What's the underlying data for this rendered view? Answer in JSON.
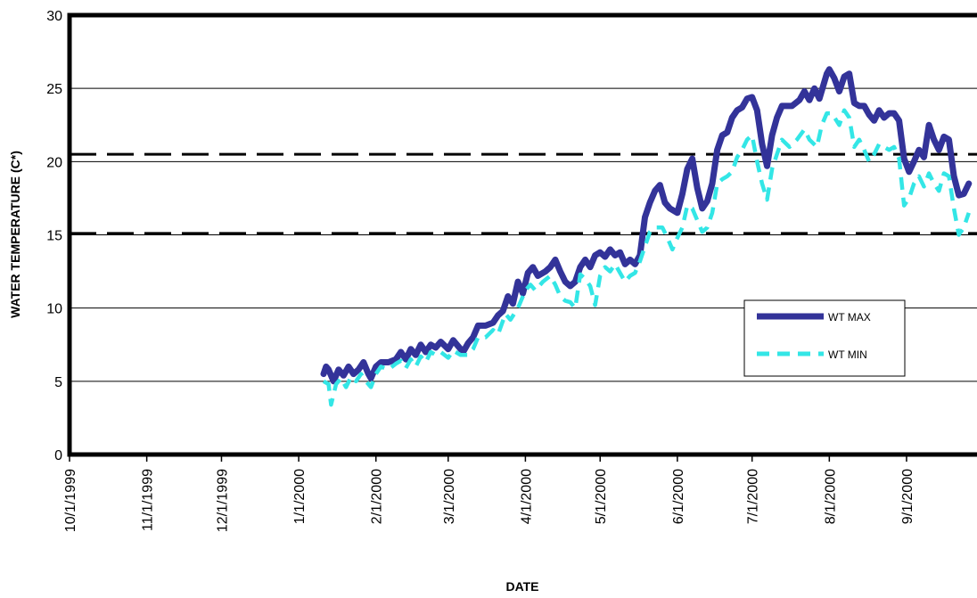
{
  "chart_data": {
    "type": "line",
    "title": "",
    "xlabel": "DATE",
    "ylabel": "WATER TEMPERATURE (C*)",
    "ylim": [
      0,
      30
    ],
    "yticks": [
      "0",
      "5",
      "10",
      "15",
      "20",
      "25",
      "30"
    ],
    "xlim": [
      "1999-10-01",
      "2000-09-30"
    ],
    "xticks": [
      {
        "date": "1999-10-01",
        "label": "10/1/1999"
      },
      {
        "date": "1999-11-01",
        "label": "11/1/1999"
      },
      {
        "date": "1999-12-01",
        "label": "12/1/1999"
      },
      {
        "date": "2000-01-01",
        "label": "1/1/2000"
      },
      {
        "date": "2000-02-01",
        "label": "2/1/2000"
      },
      {
        "date": "2000-03-01",
        "label": "3/1/2000"
      },
      {
        "date": "2000-04-01",
        "label": "4/1/2000"
      },
      {
        "date": "2000-05-01",
        "label": "5/1/2000"
      },
      {
        "date": "2000-06-01",
        "label": "6/1/2000"
      },
      {
        "date": "2000-07-01",
        "label": "7/1/2000"
      },
      {
        "date": "2000-08-01",
        "label": "8/1/2000"
      },
      {
        "date": "2000-09-01",
        "label": "9/1/2000"
      }
    ],
    "grid": "horizontal",
    "legend_position": "right",
    "reference_lines": [
      {
        "y": 20.5,
        "style": "dashed"
      },
      {
        "y": 15.1,
        "style": "dashed"
      }
    ],
    "series": [
      {
        "name": "WT MAX",
        "color": "#333399",
        "style": "solid",
        "points": [
          [
            "2000-01-11",
            5.5
          ],
          [
            "2000-01-12",
            6.0
          ],
          [
            "2000-01-13",
            5.8
          ],
          [
            "2000-01-15",
            5.0
          ],
          [
            "2000-01-17",
            5.8
          ],
          [
            "2000-01-19",
            5.4
          ],
          [
            "2000-01-21",
            6.0
          ],
          [
            "2000-01-23",
            5.5
          ],
          [
            "2000-01-25",
            5.8
          ],
          [
            "2000-01-27",
            6.3
          ],
          [
            "2000-01-29",
            5.5
          ],
          [
            "2000-01-30",
            5.2
          ],
          [
            "2000-02-01",
            6.0
          ],
          [
            "2000-02-03",
            6.3
          ],
          [
            "2000-02-06",
            6.3
          ],
          [
            "2000-02-09",
            6.5
          ],
          [
            "2000-02-11",
            7.0
          ],
          [
            "2000-02-13",
            6.5
          ],
          [
            "2000-02-15",
            7.2
          ],
          [
            "2000-02-17",
            6.8
          ],
          [
            "2000-02-19",
            7.5
          ],
          [
            "2000-02-21",
            7.0
          ],
          [
            "2000-02-23",
            7.5
          ],
          [
            "2000-02-25",
            7.3
          ],
          [
            "2000-02-27",
            7.7
          ],
          [
            "2000-03-01",
            7.2
          ],
          [
            "2000-03-03",
            7.8
          ],
          [
            "2000-03-05",
            7.4
          ],
          [
            "2000-03-07",
            7.0
          ],
          [
            "2000-03-09",
            7.6
          ],
          [
            "2000-03-11",
            8.0
          ],
          [
            "2000-03-13",
            8.8
          ],
          [
            "2000-03-16",
            8.8
          ],
          [
            "2000-03-19",
            9.0
          ],
          [
            "2000-03-21",
            9.5
          ],
          [
            "2000-03-23",
            9.8
          ],
          [
            "2000-03-25",
            10.8
          ],
          [
            "2000-03-27",
            10.3
          ],
          [
            "2000-03-29",
            11.8
          ],
          [
            "2000-03-31",
            11.0
          ],
          [
            "2000-04-02",
            12.4
          ],
          [
            "2000-04-04",
            12.8
          ],
          [
            "2000-04-06",
            12.2
          ],
          [
            "2000-04-09",
            12.5
          ],
          [
            "2000-04-11",
            12.8
          ],
          [
            "2000-04-13",
            13.3
          ],
          [
            "2000-04-15",
            12.5
          ],
          [
            "2000-04-17",
            11.8
          ],
          [
            "2000-04-19",
            11.5
          ],
          [
            "2000-04-21",
            11.8
          ],
          [
            "2000-04-23",
            12.8
          ],
          [
            "2000-04-25",
            13.3
          ],
          [
            "2000-04-27",
            12.8
          ],
          [
            "2000-04-29",
            13.6
          ],
          [
            "2000-05-01",
            13.8
          ],
          [
            "2000-05-03",
            13.5
          ],
          [
            "2000-05-05",
            14.0
          ],
          [
            "2000-05-07",
            13.6
          ],
          [
            "2000-05-09",
            13.8
          ],
          [
            "2000-05-11",
            13.0
          ],
          [
            "2000-05-13",
            13.3
          ],
          [
            "2000-05-15",
            13.0
          ],
          [
            "2000-05-17",
            13.6
          ],
          [
            "2000-05-19",
            16.2
          ],
          [
            "2000-05-21",
            17.2
          ],
          [
            "2000-05-23",
            18.0
          ],
          [
            "2000-05-25",
            18.4
          ],
          [
            "2000-05-27",
            17.2
          ],
          [
            "2000-05-29",
            16.8
          ],
          [
            "2000-06-01",
            16.5
          ],
          [
            "2000-06-03",
            17.8
          ],
          [
            "2000-06-05",
            19.5
          ],
          [
            "2000-06-07",
            20.2
          ],
          [
            "2000-06-09",
            18.2
          ],
          [
            "2000-06-11",
            16.8
          ],
          [
            "2000-06-13",
            17.3
          ],
          [
            "2000-06-15",
            18.5
          ],
          [
            "2000-06-17",
            20.8
          ],
          [
            "2000-06-19",
            21.8
          ],
          [
            "2000-06-21",
            22.0
          ],
          [
            "2000-06-23",
            23.0
          ],
          [
            "2000-06-25",
            23.5
          ],
          [
            "2000-06-27",
            23.7
          ],
          [
            "2000-06-29",
            24.3
          ],
          [
            "2000-07-01",
            24.4
          ],
          [
            "2000-07-03",
            23.5
          ],
          [
            "2000-07-05",
            21.2
          ],
          [
            "2000-07-07",
            19.7
          ],
          [
            "2000-07-09",
            21.8
          ],
          [
            "2000-07-11",
            23.0
          ],
          [
            "2000-07-13",
            23.8
          ],
          [
            "2000-07-17",
            23.8
          ],
          [
            "2000-07-20",
            24.2
          ],
          [
            "2000-07-22",
            24.8
          ],
          [
            "2000-07-24",
            24.2
          ],
          [
            "2000-07-26",
            25.0
          ],
          [
            "2000-07-28",
            24.3
          ],
          [
            "2000-07-31",
            26.0
          ],
          [
            "2000-08-01",
            26.3
          ],
          [
            "2000-08-03",
            25.7
          ],
          [
            "2000-08-05",
            24.8
          ],
          [
            "2000-08-07",
            25.8
          ],
          [
            "2000-08-09",
            26.0
          ],
          [
            "2000-08-11",
            24.0
          ],
          [
            "2000-08-13",
            23.8
          ],
          [
            "2000-08-15",
            23.8
          ],
          [
            "2000-08-17",
            23.2
          ],
          [
            "2000-08-19",
            22.8
          ],
          [
            "2000-08-21",
            23.5
          ],
          [
            "2000-08-23",
            23.0
          ],
          [
            "2000-08-25",
            23.3
          ],
          [
            "2000-08-27",
            23.3
          ],
          [
            "2000-08-29",
            22.8
          ],
          [
            "2000-08-31",
            20.2
          ],
          [
            "2000-09-02",
            19.3
          ],
          [
            "2000-09-04",
            20.0
          ],
          [
            "2000-09-06",
            20.8
          ],
          [
            "2000-09-08",
            20.3
          ],
          [
            "2000-09-10",
            22.5
          ],
          [
            "2000-09-12",
            21.5
          ],
          [
            "2000-09-14",
            20.8
          ],
          [
            "2000-09-16",
            21.7
          ],
          [
            "2000-09-18",
            21.5
          ],
          [
            "2000-09-20",
            19.0
          ],
          [
            "2000-09-22",
            17.7
          ],
          [
            "2000-09-24",
            17.8
          ],
          [
            "2000-09-26",
            18.5
          ]
        ]
      },
      {
        "name": "WT MIN",
        "color": "#33e6e6",
        "style": "dashed",
        "points": [
          [
            "2000-01-11",
            5.0
          ],
          [
            "2000-01-13",
            4.8
          ],
          [
            "2000-01-14",
            3.4
          ],
          [
            "2000-01-16",
            4.8
          ],
          [
            "2000-01-18",
            5.2
          ],
          [
            "2000-01-20",
            4.6
          ],
          [
            "2000-01-22",
            5.3
          ],
          [
            "2000-01-24",
            5.0
          ],
          [
            "2000-01-26",
            5.5
          ],
          [
            "2000-01-28",
            5.0
          ],
          [
            "2000-01-30",
            4.6
          ],
          [
            "2000-02-01",
            5.5
          ],
          [
            "2000-02-03",
            6.0
          ],
          [
            "2000-02-06",
            5.8
          ],
          [
            "2000-02-09",
            6.2
          ],
          [
            "2000-02-11",
            6.4
          ],
          [
            "2000-02-13",
            5.9
          ],
          [
            "2000-02-15",
            6.5
          ],
          [
            "2000-02-17",
            6.0
          ],
          [
            "2000-02-19",
            6.7
          ],
          [
            "2000-02-21",
            6.3
          ],
          [
            "2000-02-23",
            7.0
          ],
          [
            "2000-02-25",
            6.8
          ],
          [
            "2000-02-27",
            7.0
          ],
          [
            "2000-03-01",
            6.6
          ],
          [
            "2000-03-03",
            7.1
          ],
          [
            "2000-03-06",
            6.8
          ],
          [
            "2000-03-09",
            6.8
          ],
          [
            "2000-03-11",
            7.2
          ],
          [
            "2000-03-13",
            8.0
          ],
          [
            "2000-03-16",
            8.0
          ],
          [
            "2000-03-19",
            8.5
          ],
          [
            "2000-03-21",
            8.2
          ],
          [
            "2000-03-24",
            9.6
          ],
          [
            "2000-03-26",
            9.2
          ],
          [
            "2000-03-29",
            10.0
          ],
          [
            "2000-04-01",
            11.2
          ],
          [
            "2000-04-03",
            11.6
          ],
          [
            "2000-04-05",
            11.2
          ],
          [
            "2000-04-08",
            11.8
          ],
          [
            "2000-04-11",
            12.2
          ],
          [
            "2000-04-13",
            11.6
          ],
          [
            "2000-04-15",
            10.8
          ],
          [
            "2000-04-17",
            10.5
          ],
          [
            "2000-04-19",
            10.4
          ],
          [
            "2000-04-21",
            10.0
          ],
          [
            "2000-04-23",
            12.3
          ],
          [
            "2000-04-25",
            12.0
          ],
          [
            "2000-04-27",
            11.5
          ],
          [
            "2000-04-29",
            10.2
          ],
          [
            "2000-05-01",
            12.2
          ],
          [
            "2000-05-03",
            12.8
          ],
          [
            "2000-05-05",
            12.5
          ],
          [
            "2000-05-07",
            13.0
          ],
          [
            "2000-05-09",
            12.4
          ],
          [
            "2000-05-11",
            11.8
          ],
          [
            "2000-05-13",
            12.2
          ],
          [
            "2000-05-15",
            12.4
          ],
          [
            "2000-05-17",
            13.2
          ],
          [
            "2000-05-19",
            14.2
          ],
          [
            "2000-05-21",
            15.2
          ],
          [
            "2000-05-23",
            15.5
          ],
          [
            "2000-05-26",
            15.5
          ],
          [
            "2000-05-28",
            14.8
          ],
          [
            "2000-05-30",
            14.0
          ],
          [
            "2000-06-01",
            14.8
          ],
          [
            "2000-06-03",
            15.5
          ],
          [
            "2000-06-05",
            17.0
          ],
          [
            "2000-06-07",
            16.8
          ],
          [
            "2000-06-09",
            16.0
          ],
          [
            "2000-06-11",
            15.2
          ],
          [
            "2000-06-13",
            15.5
          ],
          [
            "2000-06-15",
            16.5
          ],
          [
            "2000-06-17",
            18.5
          ],
          [
            "2000-06-19",
            18.8
          ],
          [
            "2000-06-21",
            19.0
          ],
          [
            "2000-06-23",
            19.3
          ],
          [
            "2000-06-25",
            20.3
          ],
          [
            "2000-06-27",
            20.8
          ],
          [
            "2000-06-29",
            21.5
          ],
          [
            "2000-07-01",
            21.8
          ],
          [
            "2000-07-03",
            20.0
          ],
          [
            "2000-07-05",
            18.5
          ],
          [
            "2000-07-07",
            17.4
          ],
          [
            "2000-07-09",
            19.5
          ],
          [
            "2000-07-11",
            20.5
          ],
          [
            "2000-07-13",
            21.5
          ],
          [
            "2000-07-16",
            21.0
          ],
          [
            "2000-07-19",
            21.5
          ],
          [
            "2000-07-22",
            22.2
          ],
          [
            "2000-07-24",
            21.5
          ],
          [
            "2000-07-27",
            21.0
          ],
          [
            "2000-07-29",
            22.5
          ],
          [
            "2000-07-31",
            23.3
          ],
          [
            "2000-08-02",
            23.3
          ],
          [
            "2000-08-05",
            22.5
          ],
          [
            "2000-08-07",
            23.5
          ],
          [
            "2000-08-09",
            23.0
          ],
          [
            "2000-08-11",
            21.0
          ],
          [
            "2000-08-13",
            21.5
          ],
          [
            "2000-08-15",
            20.8
          ],
          [
            "2000-08-17",
            20.0
          ],
          [
            "2000-08-19",
            20.5
          ],
          [
            "2000-08-21",
            21.2
          ],
          [
            "2000-08-23",
            21.0
          ],
          [
            "2000-08-25",
            20.8
          ],
          [
            "2000-08-27",
            21.0
          ],
          [
            "2000-08-29",
            20.2
          ],
          [
            "2000-08-31",
            17.0
          ],
          [
            "2000-09-02",
            17.5
          ],
          [
            "2000-09-04",
            18.5
          ],
          [
            "2000-09-06",
            19.0
          ],
          [
            "2000-09-08",
            18.3
          ],
          [
            "2000-09-10",
            19.2
          ],
          [
            "2000-09-12",
            18.5
          ],
          [
            "2000-09-14",
            18.0
          ],
          [
            "2000-09-16",
            19.2
          ],
          [
            "2000-09-18",
            19.0
          ],
          [
            "2000-09-20",
            16.8
          ],
          [
            "2000-09-22",
            15.0
          ],
          [
            "2000-09-24",
            15.5
          ],
          [
            "2000-09-26",
            16.5
          ]
        ]
      }
    ]
  }
}
